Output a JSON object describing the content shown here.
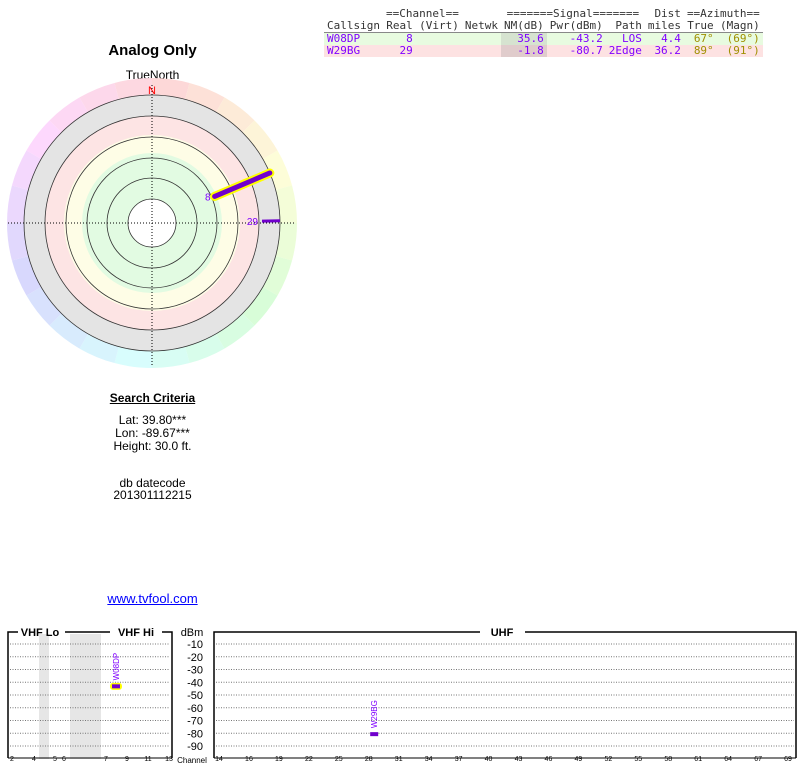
{
  "title": "Analog Only",
  "polar": {
    "north_label": "TrueNorth",
    "n_marker": "N"
  },
  "table": {
    "group_headers": {
      "channel": "==Channel==",
      "signal": "=======Signal=======",
      "azimuth": "==Azimuth=="
    },
    "headers": [
      "Callsign",
      "Real",
      "(Virt)",
      "Netwk",
      "NM(dB)",
      "Pwr(dBm)",
      "Path",
      "Dist miles",
      "True",
      "(Magn)"
    ],
    "dist_header_top": "Dist",
    "dist_header_bottom": "miles",
    "rows": [
      {
        "callsign": "W08DP",
        "real": "8",
        "virt": "",
        "netwk": "",
        "nm": "35.6",
        "pwr": "-43.2",
        "path": "LOS",
        "dist": "4.4",
        "true": "67°",
        "magn": "(69°)",
        "azimuth": 67,
        "channel": 8,
        "pwr_dbm": -43.2
      },
      {
        "callsign": "W29BG",
        "real": "29",
        "virt": "",
        "netwk": "",
        "nm": "-1.8",
        "pwr": "-80.7",
        "path": "2Edge",
        "dist": "36.2",
        "true": "89°",
        "magn": "(91°)",
        "azimuth": 89,
        "channel": 29,
        "pwr_dbm": -80.7
      }
    ]
  },
  "search": {
    "heading": "Search Criteria",
    "lat": "Lat: 39.80***",
    "lon": "Lon: -89.67***",
    "height": "Height: 30.0 ft."
  },
  "db": {
    "label": "db datecode",
    "value": "201301112215"
  },
  "link": "www.tvfool.com",
  "spectrum": {
    "vhf_lo": "VHF Lo",
    "vhf_hi": "VHF Hi",
    "uhf": "UHF",
    "unit": "dBm",
    "channel_label": "Channel",
    "db_ticks": [
      "-10",
      "-20",
      "-30",
      "-40",
      "-50",
      "-60",
      "-70",
      "-80",
      "-90"
    ],
    "vhf_ticks": [
      "2",
      "4",
      "5",
      "6",
      "7",
      "9",
      "11",
      "13"
    ],
    "uhf_ticks": [
      "14",
      "16",
      "19",
      "22",
      "25",
      "28",
      "31",
      "34",
      "37",
      "40",
      "43",
      "46",
      "49",
      "52",
      "55",
      "58",
      "61",
      "64",
      "67",
      "69"
    ]
  },
  "colors": {
    "signal": "#7000cc",
    "highlight": "#ffff00",
    "label": "#8000ff"
  }
}
